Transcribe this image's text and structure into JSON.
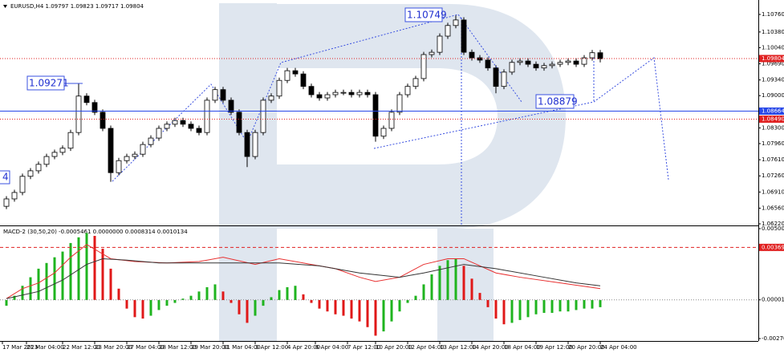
{
  "chart_data": [
    {
      "type": "candlestick",
      "title": "EURUSD,H4  1.09797 1.09823 1.09717 1.09804",
      "xlim": [
        -0.8,
        93.7
      ],
      "ylim": [
        1.0622,
        1.1076
      ],
      "yticks": [
        {
          "value": 1.1076,
          "label": "1.10760"
        },
        {
          "value": 1.1038,
          "label": "1.10380"
        },
        {
          "value": 1.1004,
          "label": "1.10040"
        },
        {
          "value": 1.0969,
          "label": "1.09690"
        },
        {
          "value": 1.0934,
          "label": "1.09340"
        },
        {
          "value": 1.09,
          "label": "1.09000"
        },
        {
          "value": 1.083,
          "label": "1.08300"
        },
        {
          "value": 1.0796,
          "label": "1.07960"
        },
        {
          "value": 1.0761,
          "label": "1.07610"
        },
        {
          "value": 1.0726,
          "label": "1.07260"
        },
        {
          "value": 1.0691,
          "label": "1.06910"
        },
        {
          "value": 1.0656,
          "label": "1.06560"
        },
        {
          "value": 1.0622,
          "label": "1.06220"
        }
      ],
      "up_color": "#ffffff",
      "down_color": "#000000",
      "outline_color": "#000000",
      "levels": [
        {
          "value": 1.09804,
          "label": "1.09804",
          "color": "#e02020",
          "line_style": "dotted"
        },
        {
          "value": 1.08664,
          "label": "1.08664",
          "color": "#2848e8",
          "line_style": "solid"
        },
        {
          "value": 1.0849,
          "label": "1.08490",
          "color": "#e02020",
          "line_style": "dotted"
        }
      ],
      "annotations": [
        "1.09271",
        "1.10749",
        "1.08879",
        "4"
      ],
      "ohlc": [
        [
          1.066,
          1.0682,
          1.0654,
          1.0676
        ],
        [
          1.0676,
          1.0696,
          1.067,
          1.069
        ],
        [
          1.069,
          1.0731,
          1.0684,
          1.0725
        ],
        [
          1.0725,
          1.0743,
          1.0719,
          1.0737
        ],
        [
          1.0737,
          1.0757,
          1.0731,
          1.0751
        ],
        [
          1.0751,
          1.0774,
          1.0745,
          1.0768
        ],
        [
          1.0768,
          1.0783,
          1.0762,
          1.0777
        ],
        [
          1.0777,
          1.0792,
          1.0771,
          1.0786
        ],
        [
          1.0786,
          1.0826,
          1.078,
          1.082
        ],
        [
          1.082,
          1.0927,
          1.0814,
          1.0899
        ],
        [
          1.0899,
          1.0905,
          1.0879,
          1.0885
        ],
        [
          1.0885,
          1.0891,
          1.0858,
          1.0864
        ],
        [
          1.0864,
          1.087,
          1.0823,
          1.0829
        ],
        [
          1.0829,
          1.0835,
          1.0713,
          1.0733
        ],
        [
          1.0733,
          1.0765,
          1.0727,
          1.0759
        ],
        [
          1.0759,
          1.0774,
          1.0753,
          1.0768
        ],
        [
          1.0768,
          1.0779,
          1.0762,
          1.0773
        ],
        [
          1.0773,
          1.08,
          1.0767,
          1.0794
        ],
        [
          1.0794,
          1.0814,
          1.0788,
          1.0808
        ],
        [
          1.0808,
          1.0835,
          1.0802,
          1.0829
        ],
        [
          1.0829,
          1.0844,
          1.0823,
          1.0838
        ],
        [
          1.0838,
          1.0852,
          1.0832,
          1.0846
        ],
        [
          1.0846,
          1.0852,
          1.0832,
          1.0838
        ],
        [
          1.0838,
          1.0844,
          1.0823,
          1.0829
        ],
        [
          1.0829,
          1.0835,
          1.0814,
          1.082
        ],
        [
          1.082,
          1.0896,
          1.0814,
          1.089
        ],
        [
          1.089,
          1.0919,
          1.0884,
          1.0913
        ],
        [
          1.0913,
          1.0919,
          1.0884,
          1.089
        ],
        [
          1.089,
          1.0896,
          1.0858,
          1.0864
        ],
        [
          1.0864,
          1.087,
          1.0814,
          1.082
        ],
        [
          1.082,
          1.0826,
          1.0745,
          1.0768
        ],
        [
          1.0768,
          1.0826,
          1.0762,
          1.082
        ],
        [
          1.082,
          1.0896,
          1.0814,
          1.089
        ],
        [
          1.089,
          1.0905,
          1.0884,
          1.0899
        ],
        [
          1.0899,
          1.0939,
          1.0893,
          1.0933
        ],
        [
          1.0933,
          1.096,
          1.0927,
          1.0954
        ],
        [
          1.0954,
          1.096,
          1.0941,
          1.0947
        ],
        [
          1.0947,
          1.0953,
          1.0914,
          1.092
        ],
        [
          1.092,
          1.0926,
          1.0896,
          1.0902
        ],
        [
          1.0902,
          1.0908,
          1.0889,
          1.0895
        ],
        [
          1.0895,
          1.0908,
          1.0889,
          1.0902
        ],
        [
          1.0902,
          1.0913,
          1.0896,
          1.0907
        ],
        [
          1.0907,
          1.0913,
          1.0901,
          1.0907
        ],
        [
          1.0907,
          1.0913,
          1.0896,
          1.0902
        ],
        [
          1.0902,
          1.0913,
          1.0896,
          1.0907
        ],
        [
          1.0907,
          1.0913,
          1.0896,
          1.0902
        ],
        [
          1.0902,
          1.0908,
          1.08,
          1.0812
        ],
        [
          1.0812,
          1.0835,
          1.0806,
          1.0829
        ],
        [
          1.0829,
          1.087,
          1.0823,
          1.0864
        ],
        [
          1.0864,
          1.0908,
          1.0858,
          1.0902
        ],
        [
          1.0902,
          1.0926,
          1.0896,
          1.092
        ],
        [
          1.092,
          1.0943,
          1.0914,
          1.0937
        ],
        [
          1.0937,
          1.0995,
          1.0931,
          1.0989
        ],
        [
          1.0989,
          1.1,
          1.0983,
          1.0994
        ],
        [
          1.0994,
          1.1035,
          1.0988,
          1.1029
        ],
        [
          1.1029,
          1.1058,
          1.1023,
          1.1052
        ],
        [
          1.1052,
          1.1075,
          1.1046,
          1.1064
        ],
        [
          1.1064,
          1.107,
          1.0988,
          1.0994
        ],
        [
          1.0994,
          1.1,
          1.0976,
          1.0982
        ],
        [
          1.0982,
          1.0988,
          1.0971,
          1.0977
        ],
        [
          1.0977,
          1.0983,
          1.0954,
          1.096
        ],
        [
          1.096,
          1.0966,
          1.0905,
          1.092
        ],
        [
          1.092,
          1.0957,
          1.0914,
          1.0951
        ],
        [
          1.0951,
          1.0978,
          1.0945,
          1.0972
        ],
        [
          1.0972,
          1.0981,
          1.0966,
          1.0975
        ],
        [
          1.0975,
          1.0981,
          1.0962,
          1.0968
        ],
        [
          1.0968,
          1.0974,
          1.0954,
          1.096
        ],
        [
          1.096,
          1.0971,
          1.0954,
          1.0965
        ],
        [
          1.0965,
          1.0974,
          1.0959,
          1.0968
        ],
        [
          1.0968,
          1.0978,
          1.0962,
          1.0972
        ],
        [
          1.0972,
          1.0981,
          1.0966,
          1.0975
        ],
        [
          1.0975,
          1.0981,
          1.0962,
          1.0968
        ],
        [
          1.0968,
          1.0988,
          1.0962,
          1.0982
        ],
        [
          1.0982,
          1.0999,
          1.0976,
          1.0993
        ],
        [
          1.0993,
          1.0999,
          1.0972,
          1.098
        ]
      ]
    },
    {
      "type": "macd",
      "title": "MACD-2 (30,50,20) -0.0005461 0.0000000 0.0008314 0.0010134",
      "xlim": [
        -0.8,
        93.7
      ],
      "ylim": [
        -0.0027016,
        0.0050083
      ],
      "yticks": [
        {
          "value": 0.0050083,
          "label": "0.0050083"
        },
        {
          "value": 1.48e-05,
          "label": "0.0000148"
        },
        {
          "value": -0.0027016,
          "label": "-0.0027016"
        }
      ],
      "levels": [
        {
          "value": 0.003693,
          "label": "0.0036930",
          "color": "#e02020",
          "line_style": "dashed"
        }
      ],
      "xticks": [
        {
          "value": 0,
          "label": "17 Mar 2023"
        },
        {
          "value": 3,
          "label": "21 Mar 04:00"
        },
        {
          "value": 7.5,
          "label": "22 Mar 12:00"
        },
        {
          "value": 11.5,
          "label": "23 Mar 20:00"
        },
        {
          "value": 15.5,
          "label": "27 Mar 04:00"
        },
        {
          "value": 19.5,
          "label": "28 Mar 12:00"
        },
        {
          "value": 23.5,
          "label": "29 Mar 20:00"
        },
        {
          "value": 27.5,
          "label": "31 Mar 04:00"
        },
        {
          "value": 31.5,
          "label": "3 Apr 12:00"
        },
        {
          "value": 35.5,
          "label": "4 Apr 20:00"
        },
        {
          "value": 39,
          "label": "6 Apr 04:00"
        },
        {
          "value": 43,
          "label": "7 Apr 12:00"
        },
        {
          "value": 46.5,
          "label": "10 Apr 20:00"
        },
        {
          "value": 50.5,
          "label": "12 Apr 04:00"
        },
        {
          "value": 54.5,
          "label": "13 Apr 12:00"
        },
        {
          "value": 58.5,
          "label": "14 Apr 20:00"
        },
        {
          "value": 62.5,
          "label": "18 Apr 04:00"
        },
        {
          "value": 66.5,
          "label": "19 Apr 12:00"
        },
        {
          "value": 70.5,
          "label": "20 Apr 20:00"
        },
        {
          "value": 74.5,
          "label": "24 Apr 04:00"
        }
      ],
      "up_color": "#1fb41f",
      "down_color": "#e01818",
      "histogram": [
        -0.0004,
        0.0003,
        0.001,
        0.0016,
        0.0022,
        0.0026,
        0.003,
        0.0034,
        0.004,
        0.0044,
        0.0047,
        0.0045,
        0.0036,
        0.0022,
        0.0008,
        -0.0006,
        -0.0012,
        -0.0013,
        -0.0011,
        -0.0007,
        -0.0004,
        -0.0002,
        0.0001,
        0.0003,
        0.0006,
        0.0009,
        0.0011,
        0.0006,
        -0.0002,
        -0.001,
        -0.0016,
        -0.0011,
        -0.0004,
        0.0002,
        0.0007,
        0.0009,
        0.001,
        0.0004,
        -0.0002,
        -0.0006,
        -0.0008,
        -0.001,
        -0.0011,
        -0.0013,
        -0.0015,
        -0.0019,
        -0.0025,
        -0.0022,
        -0.0015,
        -0.0008,
        -0.0002,
        0.0003,
        0.0011,
        0.0018,
        0.0024,
        0.0028,
        0.0029,
        0.0024,
        0.0015,
        0.0005,
        -0.0005,
        -0.0013,
        -0.0017,
        -0.0016,
        -0.0014,
        -0.0012,
        -0.001,
        -0.0009,
        -0.0009,
        -0.0008,
        -0.0008,
        -0.0007,
        -0.0006,
        -0.0006,
        -0.0005
      ],
      "lines": [
        {
          "color": "#e83030",
          "x": [
            0,
            2,
            4,
            6,
            8,
            10,
            13,
            16,
            20,
            24,
            27,
            31,
            34,
            41,
            44,
            46,
            49,
            52,
            55,
            57,
            61,
            64,
            69,
            74
          ],
          "values": [
            0.0001,
            0.0008,
            0.0012,
            0.0019,
            0.003,
            0.0039,
            0.0029,
            0.0027,
            0.0026,
            0.0027,
            0.003,
            0.0025,
            0.0029,
            0.0022,
            0.0016,
            0.0013,
            0.0016,
            0.0025,
            0.0029,
            0.0029,
            0.0019,
            0.0016,
            0.0012,
            0.0008
          ]
        },
        {
          "color": "#333333",
          "x": [
            0,
            4,
            7,
            10,
            12,
            15,
            19,
            25,
            29,
            34,
            39,
            44,
            49,
            52,
            57,
            61,
            67,
            71,
            74
          ],
          "values": [
            0.0001,
            0.0006,
            0.0014,
            0.0025,
            0.0029,
            0.0028,
            0.0026,
            0.0026,
            0.0026,
            0.0026,
            0.0024,
            0.0019,
            0.0016,
            0.0019,
            0.0025,
            0.0022,
            0.0016,
            0.0012,
            0.001
          ]
        }
      ]
    }
  ]
}
